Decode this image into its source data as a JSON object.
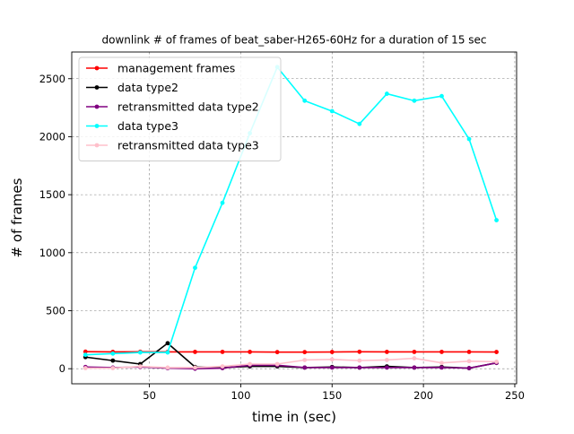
{
  "chart_data": {
    "type": "line",
    "title": "downlink # of frames of beat_saber-H265-60Hz for a duration of 15 sec",
    "xlabel": "time in (sec)",
    "ylabel": "# of frames",
    "xlim": [
      7.5,
      251
    ],
    "ylim": [
      -130,
      2730
    ],
    "xticks": [
      50,
      100,
      150,
      200,
      250
    ],
    "yticks": [
      0,
      500,
      1000,
      1500,
      2000,
      2500
    ],
    "grid": true,
    "legend_position": "top-left",
    "x": [
      15,
      30,
      45,
      60,
      75,
      90,
      105,
      120,
      135,
      150,
      165,
      180,
      195,
      210,
      225,
      240
    ],
    "series": [
      {
        "name": "management frames",
        "color": "#ff0000",
        "values": [
          147,
          145,
          146,
          145,
          145,
          145,
          145,
          143,
          143,
          144,
          146,
          145,
          145,
          145,
          145,
          144
        ]
      },
      {
        "name": "data type2",
        "color": "#000000",
        "values": [
          100,
          70,
          40,
          220,
          15,
          10,
          20,
          20,
          10,
          15,
          10,
          20,
          10,
          15,
          5,
          50
        ]
      },
      {
        "name": "retransmitted data type2",
        "color": "#800080",
        "values": [
          15,
          10,
          15,
          5,
          0,
          5,
          30,
          30,
          10,
          10,
          10,
          10,
          10,
          10,
          5,
          50
        ]
      },
      {
        "name": "data type3",
        "color": "#00ffff",
        "values": [
          120,
          130,
          140,
          140,
          870,
          1430,
          2030,
          2600,
          2310,
          2220,
          2110,
          2370,
          2310,
          2350,
          1980,
          1280
        ]
      },
      {
        "name": "retransmitted data type3",
        "color": "#ffc0cb",
        "values": [
          5,
          5,
          20,
          10,
          10,
          20,
          40,
          40,
          75,
          80,
          70,
          75,
          90,
          50,
          65,
          60
        ]
      }
    ]
  }
}
